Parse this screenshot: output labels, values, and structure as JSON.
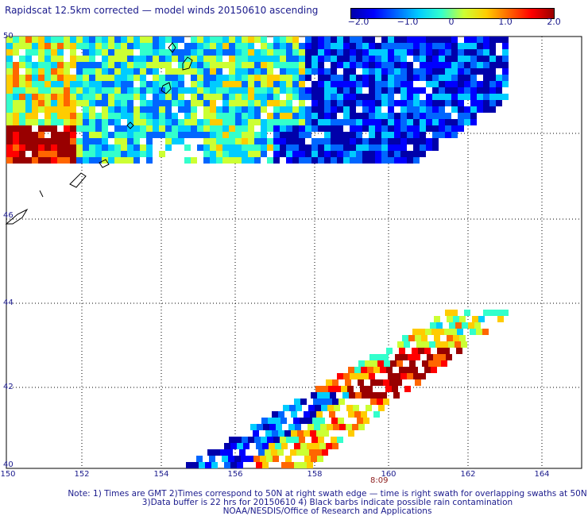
{
  "title": "Rapidscat 12.5km corrected — model winds 20150610 ascending",
  "colorbar": {
    "colors": [
      "#0000aa",
      "#0000ff",
      "#0066ff",
      "#00ccff",
      "#33ffcc",
      "#ccff33",
      "#ffcc00",
      "#ff6600",
      "#ff0000",
      "#990000"
    ],
    "ticks": [
      "−2.0",
      "−1.0",
      "0",
      "1.0",
      "2.0"
    ]
  },
  "axes": {
    "lon_labels": [
      "150",
      "152",
      "154",
      "156",
      "158",
      "160",
      "162",
      "164"
    ],
    "lat_labels": [
      "50",
      "46",
      "44",
      "42",
      "40"
    ]
  },
  "time_label": "8:09",
  "notes": [
    "Note: 1) Times are GMT 2)Times correspond to 50N at right swath edge — time is right swath for overlapping swaths at 50N",
    "3)Data buffer is 22 hrs for 20150610 4) Black barbs indicate possible rain contamination",
    "NOAA/NESDIS/Office of Research and Applications"
  ]
}
